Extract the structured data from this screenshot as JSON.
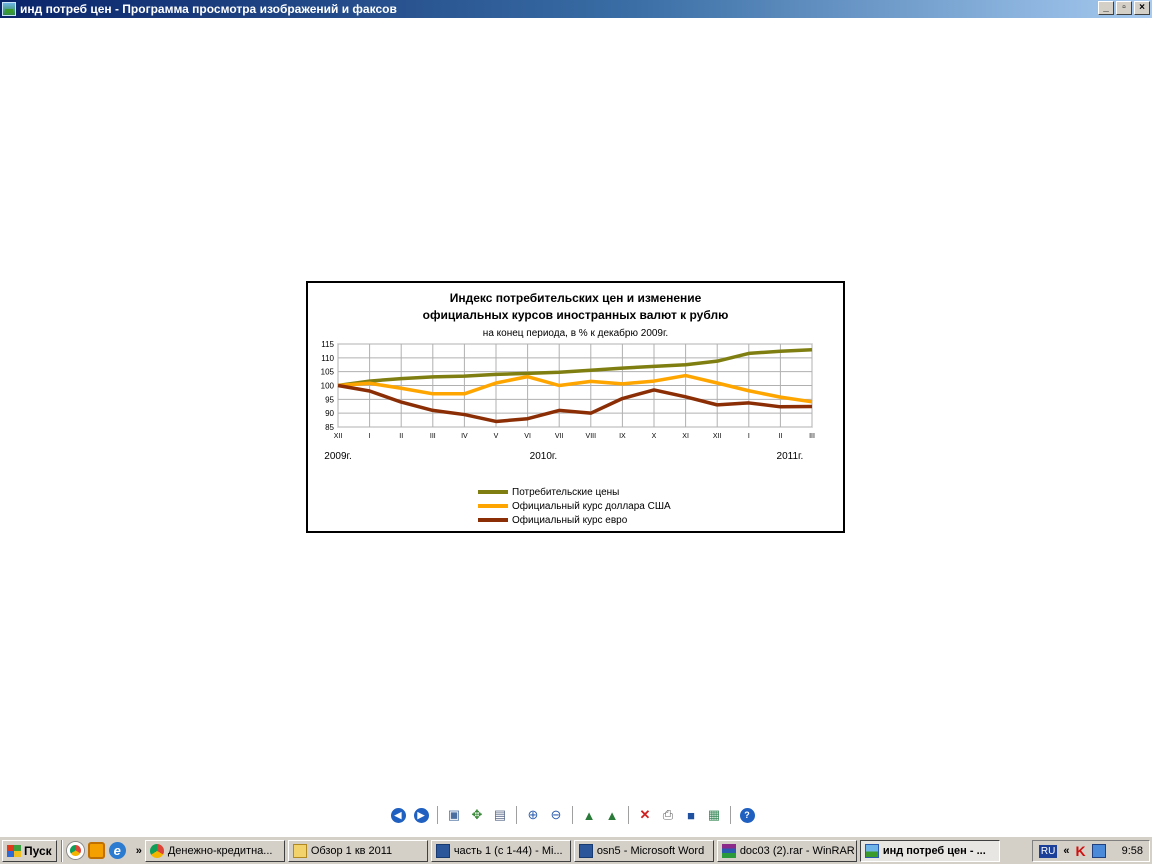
{
  "window": {
    "title": "инд потреб цен - Программа просмотра изображений и факсов",
    "buttons": [
      "_",
      "▫",
      "×"
    ]
  },
  "chart_data": {
    "type": "line",
    "title_line1": "Индекс потребительских цен и изменение",
    "title_line2": "официальных курсов иностранных валют к рублю",
    "subtitle": "на конец периода, в % к декабрю 2009г.",
    "ylim": [
      85,
      115
    ],
    "yticks": [
      85,
      90,
      95,
      100,
      105,
      110,
      115
    ],
    "categories": [
      "XII",
      "I",
      "II",
      "III",
      "IV",
      "V",
      "VI",
      "VII",
      "VIII",
      "IX",
      "X",
      "XI",
      "XII",
      "I",
      "II",
      "III"
    ],
    "year_labels": [
      {
        "label": "2009г.",
        "anchor": 0
      },
      {
        "label": "2010г.",
        "anchor": 6.5
      },
      {
        "label": "2011г.",
        "anchor": 14.3
      }
    ],
    "grid": true,
    "legend_position": "bottom",
    "series": [
      {
        "name": "Потребительские цены",
        "color": "#7f7f11",
        "values": [
          100,
          101.6,
          102.5,
          103.1,
          103.4,
          104.0,
          104.4,
          104.8,
          105.5,
          106.3,
          106.9,
          107.5,
          108.8,
          111.6,
          112.4,
          112.9
        ]
      },
      {
        "name": "Официальный курс доллара США",
        "color": "#ffa500",
        "values": [
          100,
          100.8,
          99.0,
          97.0,
          97.0,
          100.9,
          103.2,
          100.0,
          101.5,
          100.6,
          101.6,
          103.6,
          100.9,
          98.1,
          95.8,
          94.1
        ]
      },
      {
        "name": "Официальный курс евро",
        "color": "#8b2e06",
        "values": [
          100,
          98.0,
          94.0,
          91.0,
          89.5,
          87.0,
          88.0,
          91.0,
          90.0,
          95.3,
          98.4,
          95.9,
          93.0,
          93.7,
          92.3,
          92.4
        ]
      }
    ]
  },
  "taskbar": {
    "start_label": "Пуск",
    "chevron": "»",
    "tasks": [
      {
        "label": "Денежно-кредитна...",
        "icon": "chrome-icon"
      },
      {
        "label": "Обзор 1 кв 2011",
        "icon": "folder-icon"
      },
      {
        "label": "часть 1 (с 1-44) - Mi...",
        "icon": "word-icon"
      },
      {
        "label": "osn5 - Microsoft Word",
        "icon": "word-icon"
      },
      {
        "label": "doc03 (2).rar - WinRAR",
        "icon": "winrar-icon"
      },
      {
        "label": "инд потреб цен - ...",
        "icon": "image-viewer-icon",
        "active": true
      }
    ],
    "language": "RU",
    "tray_chevron": "«",
    "clock": "9:58"
  }
}
